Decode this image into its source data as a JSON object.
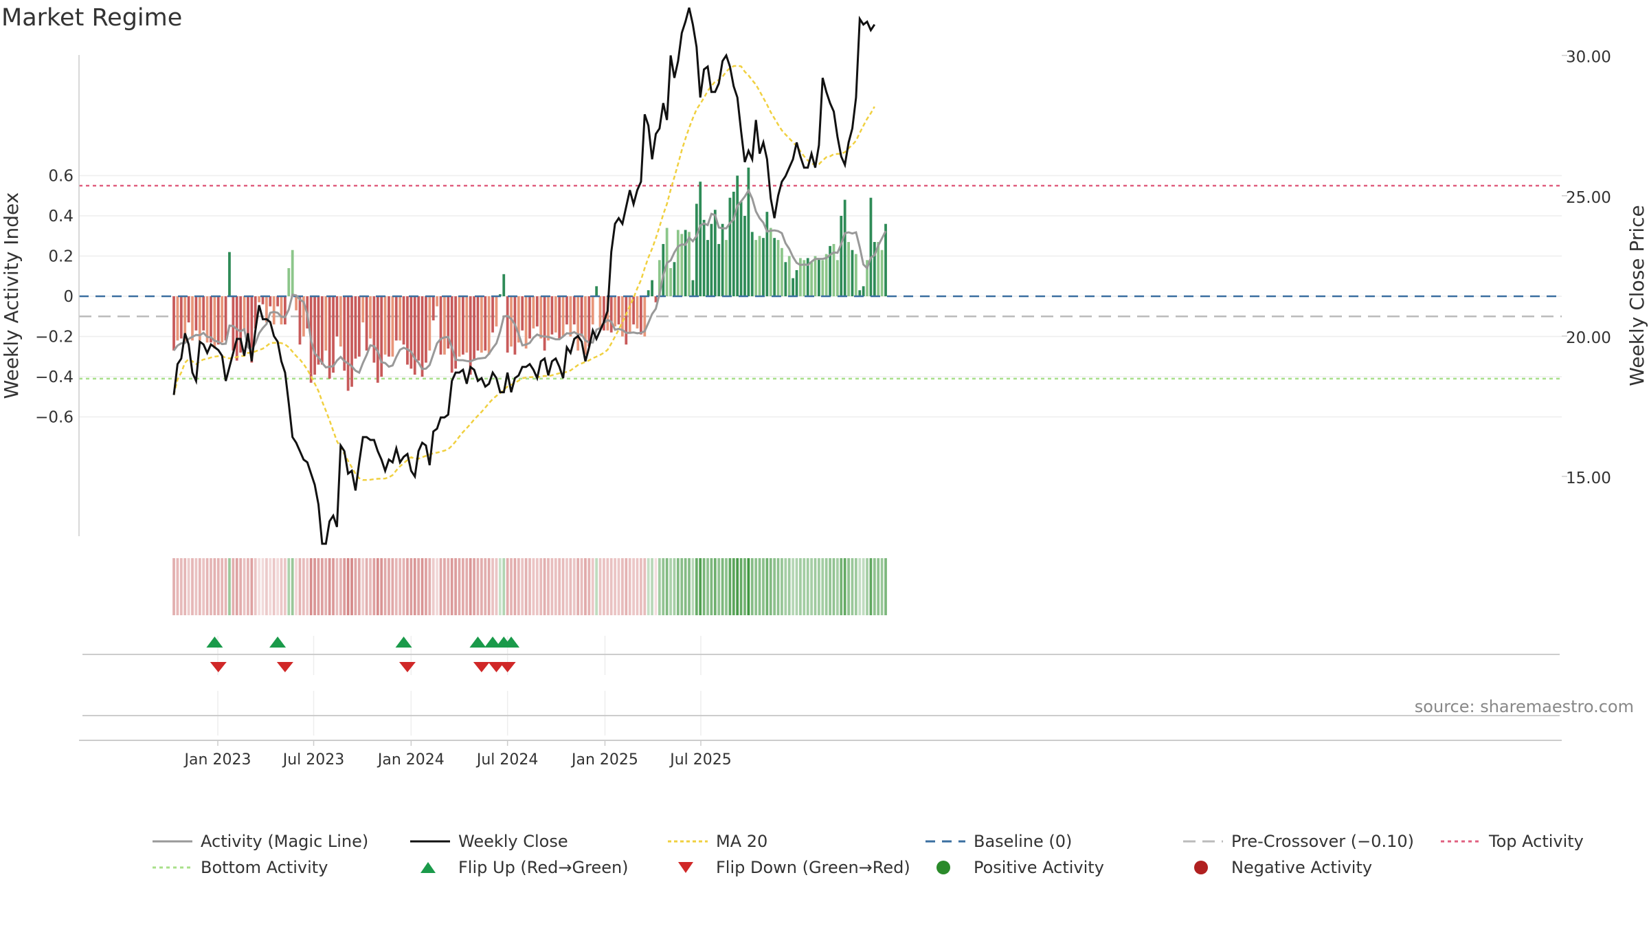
{
  "title": "Market Regime",
  "source": "source: sharemaestro.com",
  "colors": {
    "act_pos_strong": "#2e8b57",
    "act_pos_light": "#8cc68a",
    "act_neg_strong": "#c85a5a",
    "act_neg_light": "#e8967a",
    "magic": "#999999",
    "close": "#111111",
    "ma": "#f0d040",
    "baseline": "#3a6fa0",
    "pre": "#bbbbbb",
    "top": "#e06080",
    "bottom": "#a8e08a",
    "flip_up": "#1a9a4a",
    "flip_down": "#d02828",
    "pos_dot": "#2a8a2a",
    "neg_dot": "#b02020"
  },
  "chart_data": {
    "type": "bar",
    "title": "Market Regime",
    "ylabel": "Weekly Activity Index",
    "y2label": "Weekly Close Price",
    "ylim": [
      -0.72,
      0.72
    ],
    "y2lim": [
      11.3,
      33.5
    ],
    "yticks": [
      "0.6",
      "0.4",
      "0.2",
      "0",
      "−0.2",
      "−0.4",
      "−0.6"
    ],
    "y2ticks": [
      "30.00",
      "25.00",
      "20.00",
      "15.00"
    ],
    "xticks": [
      "Jan 2023",
      "Jul 2023",
      "Jan 2024",
      "Jul 2024",
      "Jan 2025",
      "Jul 2025"
    ],
    "start_date": "2022-10-10",
    "interval": "weekly",
    "activity": [
      -0.27,
      -0.22,
      -0.21,
      -0.23,
      -0.13,
      -0.22,
      -0.17,
      -0.22,
      -0.17,
      -0.23,
      -0.23,
      -0.26,
      -0.24,
      -0.23,
      -0.22,
      0.22,
      -0.27,
      -0.32,
      -0.28,
      -0.17,
      -0.23,
      -0.33,
      -0.16,
      -0.03,
      -0.04,
      -0.13,
      -0.05,
      -0.14,
      -0.05,
      -0.14,
      -0.14,
      0.14,
      0.23,
      -0.07,
      -0.24,
      -0.2,
      -0.16,
      -0.43,
      -0.39,
      -0.34,
      -0.34,
      -0.27,
      -0.41,
      -0.38,
      -0.2,
      -0.25,
      -0.37,
      -0.47,
      -0.45,
      -0.31,
      -0.3,
      -0.13,
      -0.27,
      -0.21,
      -0.33,
      -0.43,
      -0.4,
      -0.29,
      -0.3,
      -0.3,
      -0.22,
      -0.22,
      -0.24,
      -0.34,
      -0.36,
      -0.39,
      -0.32,
      -0.4,
      -0.33,
      -0.27,
      -0.12,
      -0.05,
      -0.29,
      -0.29,
      -0.26,
      -0.38,
      -0.36,
      -0.3,
      -0.29,
      -0.28,
      -0.39,
      -0.32,
      -0.27,
      -0.28,
      -0.27,
      -0.29,
      -0.18,
      -0.15,
      0.01,
      0.11,
      -0.28,
      -0.25,
      -0.29,
      -0.23,
      -0.17,
      -0.26,
      -0.21,
      -0.16,
      -0.15,
      -0.21,
      -0.27,
      -0.22,
      -0.19,
      -0.18,
      -0.21,
      -0.2,
      -0.14,
      -0.2,
      -0.14,
      -0.27,
      -0.2,
      -0.29,
      -0.25,
      -0.14,
      0.05,
      -0.16,
      -0.17,
      -0.17,
      -0.18,
      -0.15,
      -0.14,
      -0.2,
      -0.24,
      -0.18,
      -0.14,
      -0.16,
      -0.19,
      -0.2,
      0.03,
      0.08,
      -0.03,
      0.18,
      0.26,
      0.34,
      0.14,
      0.17,
      0.33,
      0.31,
      0.33,
      0.32,
      0.08,
      0.46,
      0.57,
      0.38,
      0.28,
      0.36,
      0.43,
      0.26,
      0.36,
      0.28,
      0.49,
      0.52,
      0.6,
      0.47,
      0.4,
      0.64,
      0.32,
      0.28,
      0.3,
      0.29,
      0.42,
      0.34,
      0.29,
      0.28,
      0.24,
      0.17,
      0.2,
      0.09,
      0.13,
      0.19,
      0.18,
      0.19,
      0.17,
      0.2,
      0.19,
      0.18,
      0.21,
      0.25,
      0.26,
      0.18,
      0.4,
      0.48,
      0.27,
      0.23,
      0.21,
      0.03,
      0.05,
      0.18,
      0.49,
      0.27,
      0.27,
      0.23,
      0.36
    ],
    "close": [
      17.9,
      19.0,
      19.2,
      20.1,
      19.7,
      18.7,
      18.4,
      19.8,
      19.7,
      19.4,
      19.7,
      19.6,
      19.5,
      19.3,
      18.4,
      18.9,
      19.4,
      19.9,
      19.9,
      19.3,
      20.1,
      19.1,
      20.2,
      21.1,
      20.6,
      20.6,
      20.5,
      20.0,
      19.8,
      19.1,
      18.7,
      17.6,
      16.4,
      16.2,
      15.9,
      15.6,
      15.5,
      15.1,
      14.7,
      14.0,
      12.6,
      12.6,
      13.4,
      13.6,
      13.2,
      16.1,
      15.9,
      15.1,
      15.2,
      14.5,
      15.5,
      16.4,
      16.4,
      16.3,
      16.3,
      15.9,
      15.6,
      15.2,
      15.6,
      15.5,
      16.0,
      15.5,
      15.7,
      15.8,
      15.2,
      15.0,
      15.9,
      16.2,
      16.1,
      15.4,
      16.6,
      16.7,
      17.1,
      17.1,
      17.2,
      18.4,
      18.7,
      18.7,
      18.8,
      18.3,
      18.9,
      18.8,
      18.4,
      18.5,
      18.2,
      18.3,
      18.7,
      18.5,
      18.0,
      18.0,
      18.7,
      18.0,
      18.5,
      18.6,
      18.9,
      18.9,
      19.0,
      18.8,
      18.5,
      19.1,
      19.2,
      18.6,
      19.1,
      19.2,
      18.9,
      18.5,
      19.6,
      19.4,
      19.9,
      20.0,
      19.8,
      19.1,
      19.6,
      20.2,
      19.9,
      20.2,
      20.5,
      20.9,
      23.0,
      24.0,
      24.2,
      24.0,
      24.6,
      25.2,
      24.7,
      25.2,
      25.5,
      27.9,
      27.5,
      26.3,
      27.2,
      27.4,
      28.3,
      27.7,
      30.0,
      29.2,
      29.8,
      30.8,
      31.2,
      31.7,
      31.1,
      30.3,
      28.5,
      29.5,
      29.6,
      28.7,
      28.7,
      29.0,
      29.8,
      30.0,
      29.6,
      28.9,
      28.5,
      27.3,
      26.2,
      26.6,
      26.3,
      27.7,
      26.5,
      26.9,
      26.3,
      24.9,
      24.2,
      25.0,
      25.5,
      25.7,
      26.0,
      26.3,
      26.9,
      26.4,
      26.0,
      26.0,
      26.5,
      26.0,
      26.8,
      29.2,
      28.7,
      28.3,
      28.0,
      27.1,
      26.4,
      26.1,
      26.9,
      27.4,
      28.5,
      31.3,
      31.1,
      31.2,
      30.9,
      31.1
    ]
  },
  "flips": {
    "up_dates": [
      "2022-12-26",
      "2023-04-24",
      "2023-12-18",
      "2024-05-06",
      "2024-06-03",
      "2024-06-24",
      "2024-07-08"
    ],
    "down_dates": [
      "2023-01-02",
      "2023-05-08",
      "2023-12-25",
      "2024-05-13",
      "2024-06-10",
      "2024-07-01"
    ]
  },
  "legend": [
    {
      "key": "magic",
      "label": "Activity (Magic Line)"
    },
    {
      "key": "close",
      "label": "Weekly Close"
    },
    {
      "key": "ma",
      "label": "MA 20"
    },
    {
      "key": "baseline",
      "label": "Baseline (0)"
    },
    {
      "key": "pre",
      "label": "Pre-Crossover (−0.10)"
    },
    {
      "key": "top",
      "label": "Top Activity"
    },
    {
      "key": "bottom",
      "label": "Bottom Activity"
    },
    {
      "key": "flip_up",
      "label": "Flip Up (Red→Green)"
    },
    {
      "key": "flip_down",
      "label": "Flip Down (Green→Red)"
    },
    {
      "key": "pos_dot",
      "label": "Positive Activity"
    },
    {
      "key": "neg_dot",
      "label": "Negative Activity"
    }
  ],
  "top_activity": 0.55,
  "bottom_activity": -0.41,
  "pre_crossover": -0.1
}
